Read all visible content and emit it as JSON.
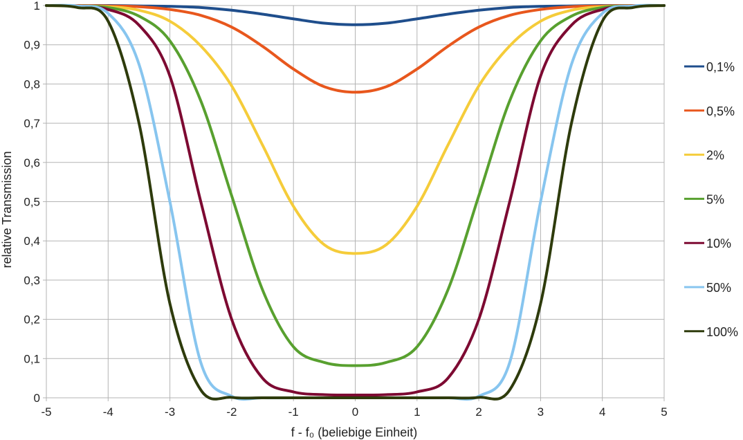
{
  "chart_data": {
    "type": "line",
    "xlabel": "f - f₀ (beliebige Einheit)",
    "ylabel": "relative Transmission",
    "xlim": [
      -5,
      5
    ],
    "ylim": [
      0,
      1
    ],
    "x_ticks": [
      "-5",
      "-4",
      "-3",
      "-2",
      "-1",
      "0",
      "1",
      "2",
      "3",
      "4",
      "5"
    ],
    "y_ticks": [
      "0",
      "0,1",
      "0,2",
      "0,3",
      "0,4",
      "0,5",
      "0,6",
      "0,7",
      "0,8",
      "0,9",
      "1"
    ],
    "grid": true,
    "legend_position": "right",
    "x": [
      -5,
      -4.5,
      -4,
      -3.5,
      -3,
      -2.5,
      -2,
      -1.5,
      -1,
      -0.5,
      0,
      0.5,
      1,
      1.5,
      2,
      2.5,
      3,
      3.5,
      4,
      4.5,
      5
    ],
    "series": [
      {
        "name": "0,1%",
        "color": "#1f4e8c",
        "values": [
          1,
          1,
          1,
          0.999,
          0.998,
          0.995,
          0.988,
          0.978,
          0.966,
          0.955,
          0.951,
          0.955,
          0.966,
          0.978,
          0.988,
          0.995,
          0.998,
          0.999,
          1,
          1,
          1
        ]
      },
      {
        "name": "0,5%",
        "color": "#e8571d",
        "values": [
          1,
          1,
          0.999,
          0.997,
          0.99,
          0.975,
          0.945,
          0.896,
          0.838,
          0.793,
          0.779,
          0.793,
          0.838,
          0.896,
          0.945,
          0.975,
          0.99,
          0.997,
          0.999,
          1,
          1
        ]
      },
      {
        "name": "2%",
        "color": "#f5cc3a",
        "values": [
          1,
          0.999,
          0.997,
          0.988,
          0.96,
          0.897,
          0.795,
          0.644,
          0.488,
          0.39,
          0.368,
          0.39,
          0.488,
          0.644,
          0.795,
          0.897,
          0.96,
          0.988,
          0.997,
          0.999,
          1
        ]
      },
      {
        "name": "5%",
        "color": "#58a02f",
        "values": [
          1,
          0.999,
          0.995,
          0.973,
          0.91,
          0.757,
          0.515,
          0.275,
          0.13,
          0.09,
          0.082,
          0.09,
          0.13,
          0.275,
          0.515,
          0.757,
          0.91,
          0.973,
          0.995,
          0.999,
          1
        ]
      },
      {
        "name": "10%",
        "color": "#7d0a32",
        "values": [
          1,
          0.999,
          0.99,
          0.95,
          0.82,
          0.5,
          0.2,
          0.05,
          0.015,
          0.008,
          0.007,
          0.008,
          0.015,
          0.05,
          0.2,
          0.5,
          0.82,
          0.95,
          0.99,
          0.999,
          1
        ]
      },
      {
        "name": "50%",
        "color": "#87c5ef",
        "values": [
          1,
          0.999,
          0.98,
          0.85,
          0.5,
          0.09,
          0.004,
          0,
          0,
          0,
          0,
          0,
          0,
          0,
          0.004,
          0.09,
          0.5,
          0.85,
          0.98,
          0.999,
          1
        ]
      },
      {
        "name": "100%",
        "color": "#2e3b0c",
        "values": [
          1,
          0.995,
          0.96,
          0.7,
          0.24,
          0.02,
          0.001,
          0,
          0,
          0,
          0,
          0,
          0,
          0,
          0.001,
          0.02,
          0.24,
          0.7,
          0.96,
          0.995,
          1
        ]
      }
    ]
  }
}
